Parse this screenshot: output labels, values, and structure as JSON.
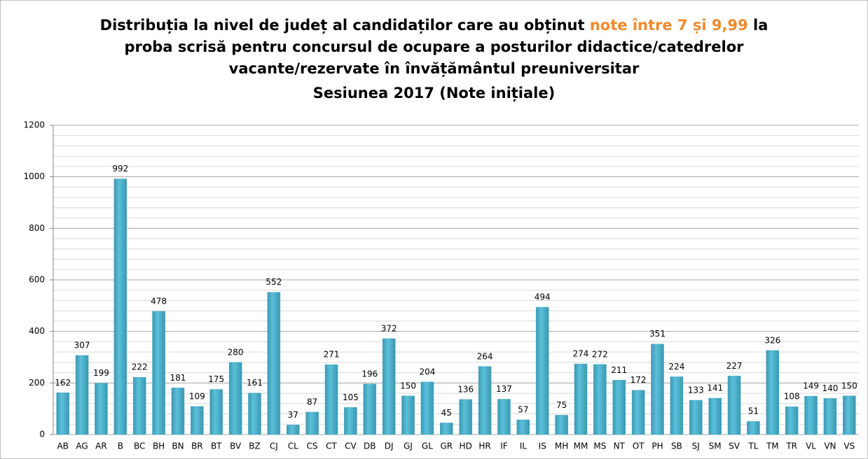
{
  "chart_data": {
    "type": "bar",
    "title": [
      [
        {
          "text": "Distribuția la nivel de județ al candidaților care au obținut",
          "color": "#000000"
        },
        {
          "text": "note între 7 și 9,99",
          "color": "#f0892b"
        },
        {
          "text": "la",
          "color": "#000000"
        }
      ],
      [
        {
          "text": "proba scrisă pentru concursul de ocupare a posturilor didactice/catedrelor",
          "color": "#000000"
        }
      ],
      [
        {
          "text": "vacante/rezervate în învățământul preuniversitar",
          "color": "#000000"
        }
      ],
      [
        {
          "text": "Sesiunea 2017 (Note inițiale)",
          "color": "#000000"
        }
      ]
    ],
    "categories": [
      "AB",
      "AG",
      "AR",
      "B",
      "BC",
      "BH",
      "BN",
      "BR",
      "BT",
      "BV",
      "BZ",
      "CJ",
      "CL",
      "CS",
      "CT",
      "CV",
      "DB",
      "DJ",
      "GJ",
      "GL",
      "GR",
      "HD",
      "HR",
      "IF",
      "IL",
      "IS",
      "MH",
      "MM",
      "MS",
      "NT",
      "OT",
      "PH",
      "SB",
      "SJ",
      "SM",
      "SV",
      "TL",
      "TM",
      "TR",
      "VL",
      "VN",
      "VS"
    ],
    "values": [
      162,
      307,
      199,
      992,
      222,
      478,
      181,
      109,
      175,
      280,
      161,
      552,
      37,
      87,
      271,
      105,
      196,
      372,
      150,
      204,
      45,
      136,
      264,
      137,
      57,
      494,
      75,
      274,
      272,
      211,
      172,
      351,
      224,
      133,
      141,
      227,
      51,
      326,
      108,
      149,
      140,
      150
    ],
    "color": "#4bacc6",
    "ylim": [
      0,
      1200
    ],
    "yticks": [
      0,
      200,
      400,
      600,
      800,
      1000,
      1200
    ],
    "minor_yticks": [
      40,
      80,
      120,
      160,
      240,
      280,
      320,
      360,
      440,
      480,
      520,
      560,
      640,
      680,
      720,
      760,
      840,
      880,
      920,
      960,
      1040,
      1080,
      1120,
      1160
    ],
    "grid": true
  }
}
